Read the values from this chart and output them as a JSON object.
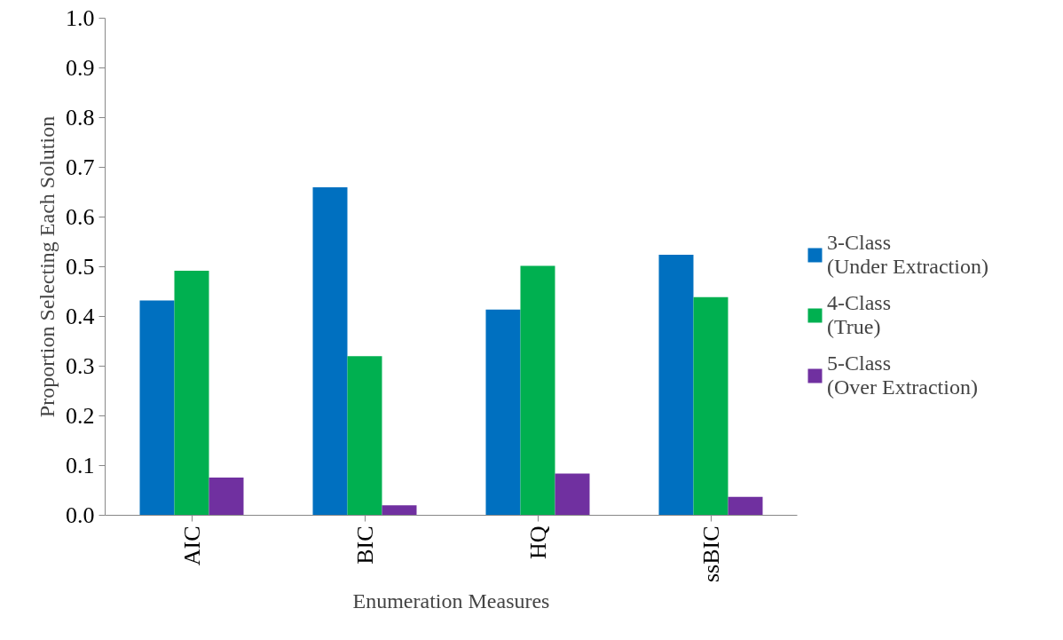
{
  "chart_data": {
    "type": "bar",
    "xlabel": "Enumeration Measures",
    "ylabel": "Proportion Selecting Each Solution",
    "categories": [
      "AIC",
      "BIC",
      "HQ",
      "ssBIC"
    ],
    "series": [
      {
        "name": "3-Class\n(Under Extraction)",
        "color": "#0070c0",
        "values": [
          0.432,
          0.66,
          0.414,
          0.524
        ]
      },
      {
        "name": "4-Class\n(True)",
        "color": "#00b050",
        "values": [
          0.492,
          0.32,
          0.502,
          0.439
        ]
      },
      {
        "name": "5-Class\n(Over Extraction)",
        "color": "#7030a0",
        "values": [
          0.076,
          0.02,
          0.084,
          0.037
        ]
      }
    ],
    "ylim": [
      0,
      1.0
    ],
    "yticks": [
      {
        "value": 0,
        "label": "0.0"
      },
      0.1,
      0.2,
      0.3,
      0.4,
      0.5,
      0.6,
      0.7,
      0.8,
      0.9,
      {
        "value": 1,
        "label": "1.0"
      }
    ],
    "grid": false,
    "legend": "right"
  }
}
